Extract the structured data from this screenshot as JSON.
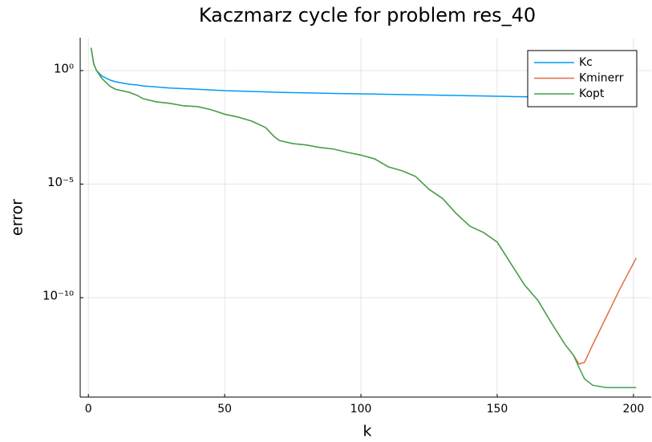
{
  "chart_data": {
    "type": "line",
    "title": "Kaczmarz cycle for problem res_40",
    "x_label": "k",
    "y_label": "error",
    "x": [
      1,
      2,
      3,
      5,
      8,
      10,
      15,
      18,
      20,
      25,
      30,
      35,
      40,
      45,
      50,
      55,
      60,
      65,
      68,
      70,
      75,
      80,
      85,
      90,
      95,
      100,
      105,
      110,
      115,
      120,
      125,
      130,
      135,
      140,
      145,
      150,
      155,
      160,
      165,
      170,
      175,
      178,
      180,
      182,
      185,
      190,
      195,
      201
    ],
    "series": [
      {
        "name": "Kc",
        "color": "#009af9",
        "values": [
          10,
          1.9,
          1.0,
          0.57,
          0.38,
          0.32,
          0.25,
          0.23,
          0.21,
          0.19,
          0.17,
          0.16,
          0.15,
          0.14,
          0.13,
          0.125,
          0.12,
          0.115,
          0.112,
          0.11,
          0.107,
          0.104,
          0.101,
          0.098,
          0.096,
          0.094,
          0.092,
          0.09,
          0.088,
          0.086,
          0.084,
          0.082,
          0.08,
          0.078,
          0.076,
          0.074,
          0.072,
          0.07,
          0.068,
          0.066,
          0.064,
          0.063,
          0.062,
          0.061,
          0.06,
          0.059,
          0.058,
          0.057
        ]
      },
      {
        "name": "Kminerr",
        "color": "#e26f46",
        "values": [
          10,
          1.9,
          1.0,
          0.44,
          0.2,
          0.15,
          0.11,
          0.08,
          0.058,
          0.042,
          0.036,
          0.028,
          0.026,
          0.019,
          0.012,
          0.0089,
          0.0059,
          0.0031,
          0.0013,
          0.00084,
          0.00061,
          0.00053,
          0.00041,
          0.00035,
          0.00025,
          0.00019,
          0.00013,
          5.8e-05,
          3.9e-05,
          2.2e-05,
          5.9e-06,
          2.3e-06,
          5e-07,
          1.4e-07,
          7.4e-08,
          2.8e-08,
          3.2e-09,
          3.7e-10,
          7.4e-11,
          7.4e-12,
          8.3e-13,
          2.9e-13,
          1.2e-13,
          1.4e-13,
          8.3e-13,
          1.4e-11,
          2.4e-10,
          5.6e-09
        ]
      },
      {
        "name": "Kopt",
        "color": "#3da44d",
        "values": [
          10,
          1.9,
          1.0,
          0.44,
          0.2,
          0.15,
          0.11,
          0.08,
          0.058,
          0.042,
          0.036,
          0.028,
          0.026,
          0.019,
          0.012,
          0.0089,
          0.0059,
          0.0031,
          0.0013,
          0.00084,
          0.00061,
          0.00053,
          0.00041,
          0.00035,
          0.00025,
          0.00019,
          0.00013,
          5.8e-05,
          3.9e-05,
          2.2e-05,
          5.9e-06,
          2.3e-06,
          5e-07,
          1.4e-07,
          7.4e-08,
          2.8e-08,
          3.2e-09,
          3.7e-10,
          7.4e-11,
          7.4e-12,
          8.3e-13,
          2.9e-13,
          8.6e-14,
          2.7e-14,
          1.4e-14,
          1.1e-14,
          1.1e-14,
          1.1e-14
        ]
      }
    ],
    "xlim": [
      -3,
      206.5
    ],
    "xticks": [
      0,
      50,
      100,
      150,
      200
    ],
    "ylim": [
      4.2e-15,
      28
    ],
    "y_scale": "log",
    "yticks": [
      {
        "value": 1,
        "label": "10⁰"
      },
      {
        "value": 1e-05,
        "label": "10⁻⁵"
      },
      {
        "value": 1e-10,
        "label": "10⁻¹⁰"
      }
    ],
    "grid": true,
    "legend": "top-right"
  }
}
